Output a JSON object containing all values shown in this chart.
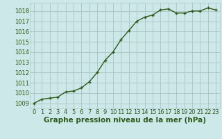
{
  "x": [
    0,
    1,
    2,
    3,
    4,
    5,
    6,
    7,
    8,
    9,
    10,
    11,
    12,
    13,
    14,
    15,
    16,
    17,
    18,
    19,
    20,
    21,
    22,
    23
  ],
  "y": [
    1009.0,
    1009.4,
    1009.5,
    1009.6,
    1010.1,
    1010.2,
    1010.5,
    1011.1,
    1012.0,
    1013.2,
    1014.0,
    1015.2,
    1016.1,
    1017.0,
    1017.4,
    1017.6,
    1018.1,
    1018.2,
    1017.8,
    1017.8,
    1018.0,
    1018.0,
    1018.3,
    1018.1
  ],
  "xlim": [
    -0.5,
    23.5
  ],
  "ylim": [
    1008.5,
    1018.8
  ],
  "yticks": [
    1009,
    1010,
    1011,
    1012,
    1013,
    1014,
    1015,
    1016,
    1017,
    1018
  ],
  "xticks": [
    0,
    1,
    2,
    3,
    4,
    5,
    6,
    7,
    8,
    9,
    10,
    11,
    12,
    13,
    14,
    15,
    16,
    17,
    18,
    19,
    20,
    21,
    22,
    23
  ],
  "line_color": "#2d5a1b",
  "marker_color": "#2d5a1b",
  "bg_color": "#cce8e8",
  "grid_color": "#b0c8c8",
  "xlabel": "Graphe pression niveau de la mer (hPa)",
  "xlabel_color": "#2d5a1b",
  "xlabel_fontsize": 7.5,
  "tick_fontsize": 6.0,
  "line_width": 1.0,
  "marker_size": 3.5
}
